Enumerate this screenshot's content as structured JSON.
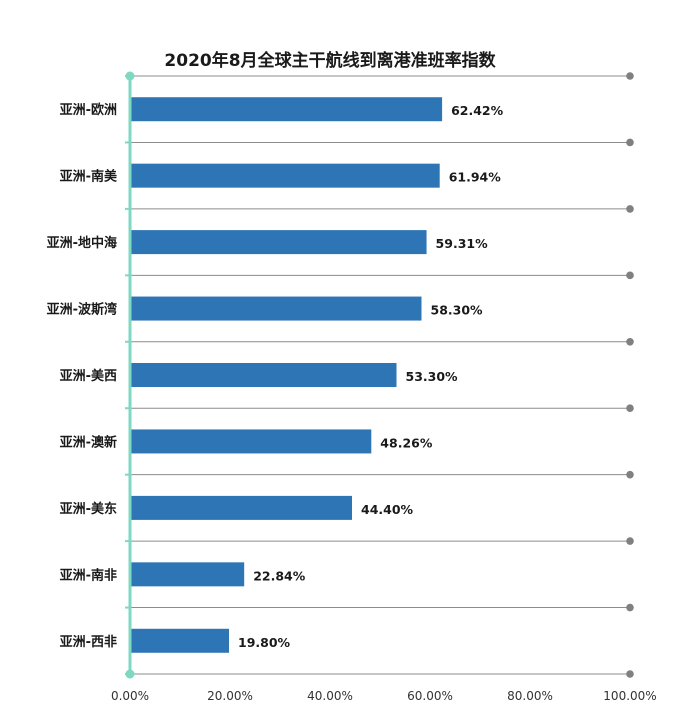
{
  "chart_data": {
    "type": "bar",
    "orientation": "horizontal",
    "title": "2020年8月全球主干航线到离港准班率指数",
    "categories": [
      "亚洲-欧洲",
      "亚洲-南美",
      "亚洲-地中海",
      "亚洲-波斯湾",
      "亚洲-美西",
      "亚洲-澳新",
      "亚洲-美东",
      "亚洲-南非",
      "亚洲-西非"
    ],
    "values": [
      62.42,
      61.94,
      59.31,
      58.3,
      53.3,
      48.26,
      44.4,
      22.84,
      19.8
    ],
    "data_labels": [
      "62.42%",
      "61.94%",
      "59.31%",
      "58.30%",
      "53.30%",
      "48.26%",
      "44.40%",
      "22.84%",
      "19.80%"
    ],
    "x_ticks": [
      0,
      20,
      40,
      60,
      80,
      100
    ],
    "x_tick_labels": [
      "0.00%",
      "20.00%",
      "40.00%",
      "60.00%",
      "80.00%",
      "100.00%"
    ],
    "xlim": [
      0,
      100
    ],
    "xlabel": "",
    "ylabel": "",
    "legend": "none",
    "colors": {
      "bar": "#2e75b6",
      "axis": "#7fd8c1",
      "separator": "#8c8c8c",
      "separator_dot": "#808080"
    }
  }
}
